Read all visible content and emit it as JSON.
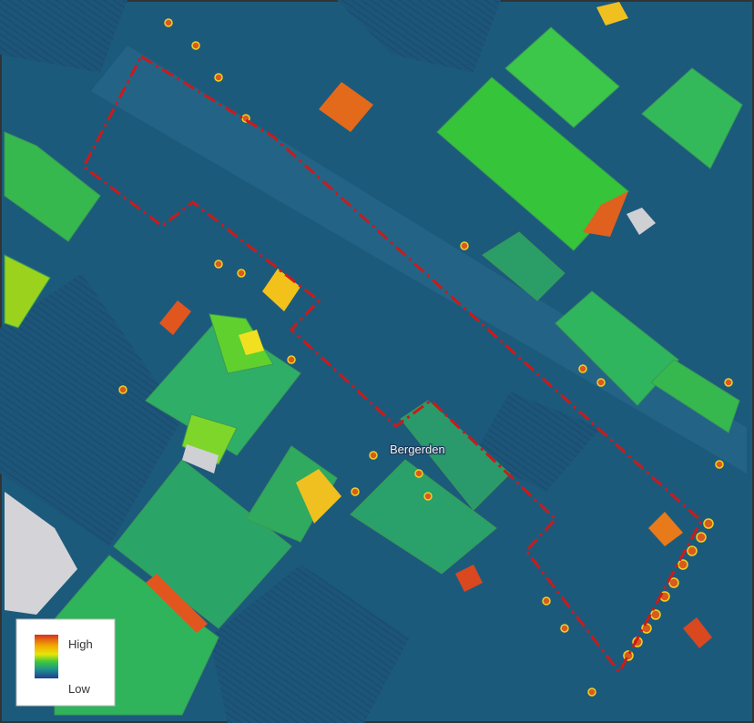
{
  "map": {
    "place_label": "Bergerden",
    "legend": {
      "high": "High",
      "low": "Low"
    }
  }
}
